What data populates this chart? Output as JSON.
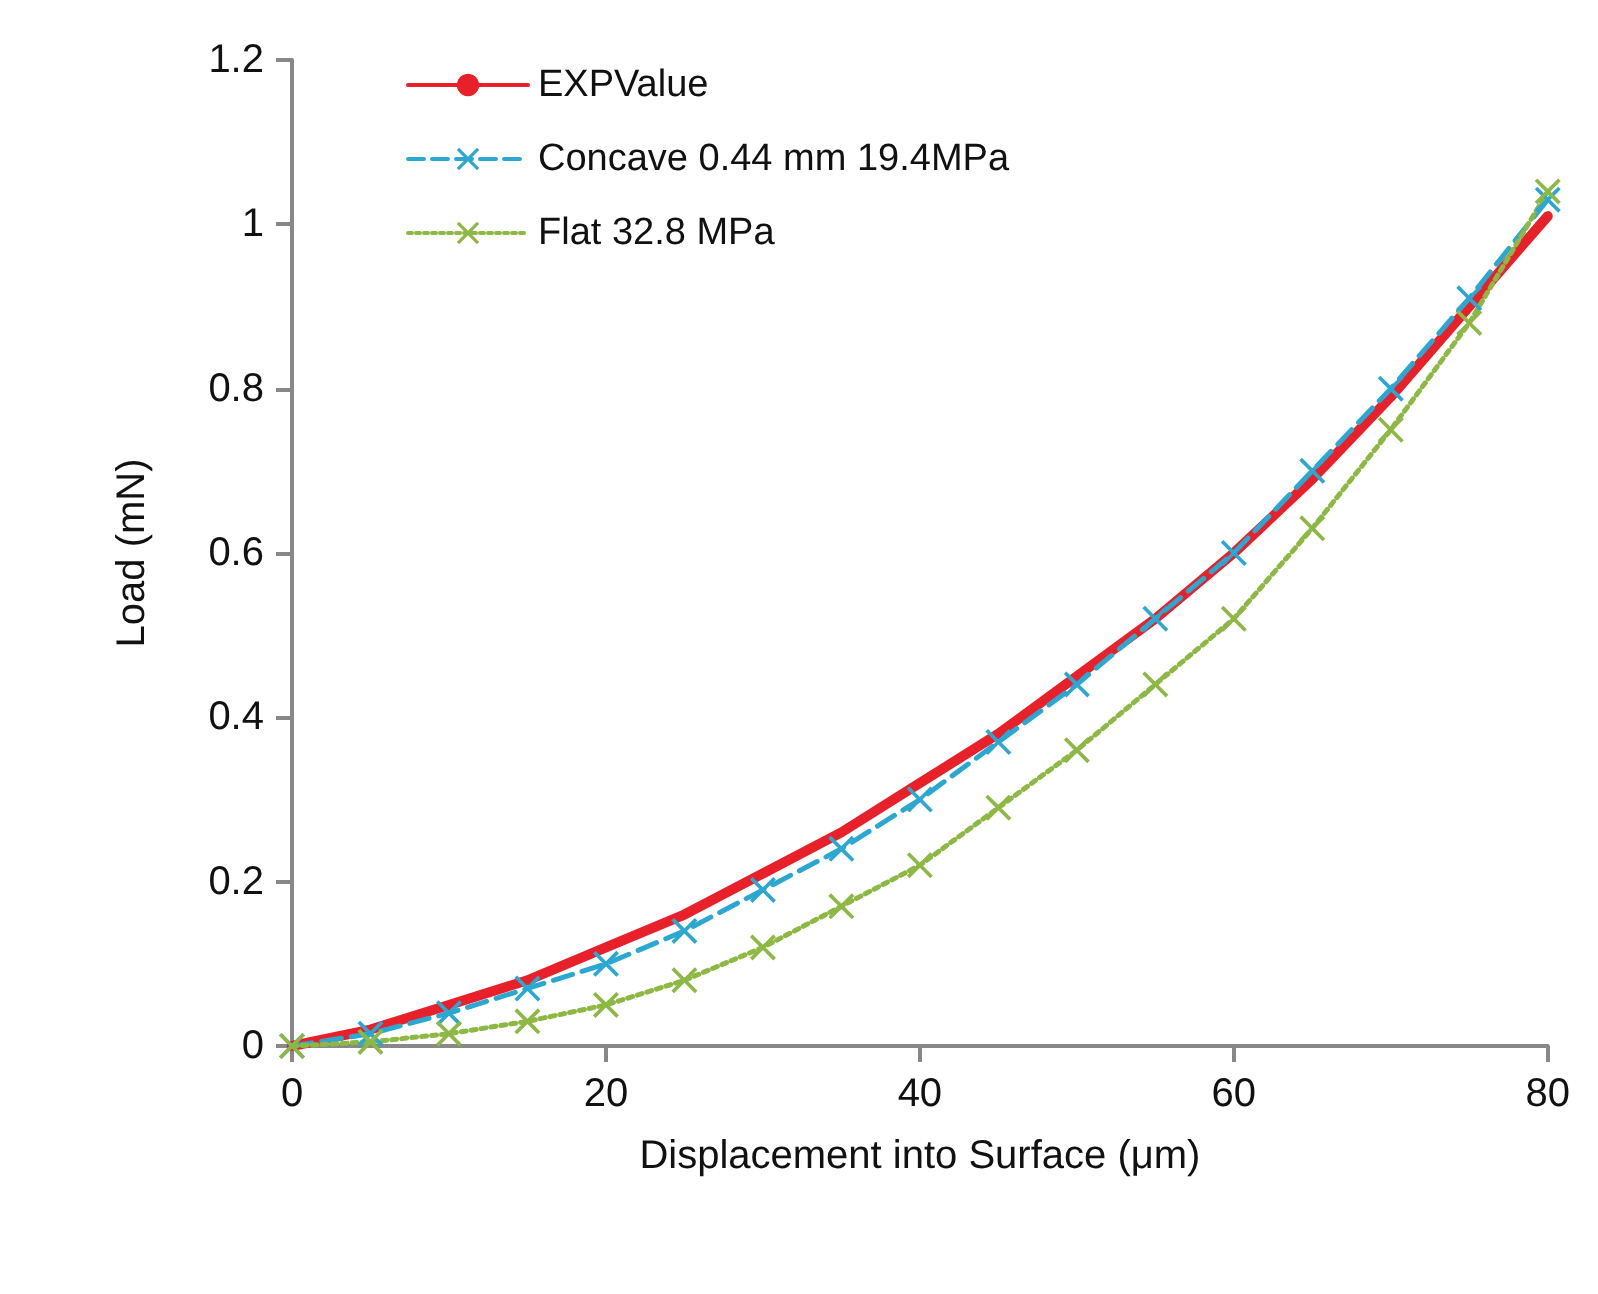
{
  "chart_data": {
    "type": "line",
    "xlabel": "Displacement into Surface (μm)",
    "ylabel": "Load (mN)",
    "x": [
      0,
      5,
      10,
      15,
      20,
      25,
      30,
      35,
      40,
      45,
      50,
      55,
      60,
      65,
      70,
      75,
      80
    ],
    "series": [
      {
        "name": "EXPValue",
        "color": "#e8202a",
        "line_style": "solid",
        "marker": "none",
        "values": [
          0,
          0.02,
          0.05,
          0.08,
          0.12,
          0.16,
          0.21,
          0.26,
          0.32,
          0.38,
          0.45,
          0.52,
          0.6,
          0.69,
          0.79,
          0.9,
          1.01
        ]
      },
      {
        "name": "Concave 0.44 mm 19.4MPa",
        "color": "#2aa8d2",
        "line_style": "dashed",
        "marker": "cross",
        "values": [
          0,
          0.015,
          0.04,
          0.07,
          0.1,
          0.14,
          0.19,
          0.24,
          0.3,
          0.37,
          0.44,
          0.52,
          0.6,
          0.7,
          0.8,
          0.91,
          1.03
        ]
      },
      {
        "name": "Flat 32.8 MPa",
        "color": "#8db843",
        "line_style": "dotted",
        "marker": "cross",
        "values": [
          0,
          0.005,
          0.015,
          0.03,
          0.05,
          0.08,
          0.12,
          0.17,
          0.22,
          0.29,
          0.36,
          0.44,
          0.52,
          0.63,
          0.75,
          0.88,
          1.04
        ]
      }
    ],
    "xlim": [
      0,
      80
    ],
    "xticks": [
      0,
      20,
      40,
      60,
      80
    ],
    "ylim": [
      0,
      1.2
    ],
    "yticks": [
      0,
      0.2,
      0.4,
      0.6,
      0.8,
      1,
      1.2
    ],
    "grid": false,
    "legend": "top left"
  }
}
